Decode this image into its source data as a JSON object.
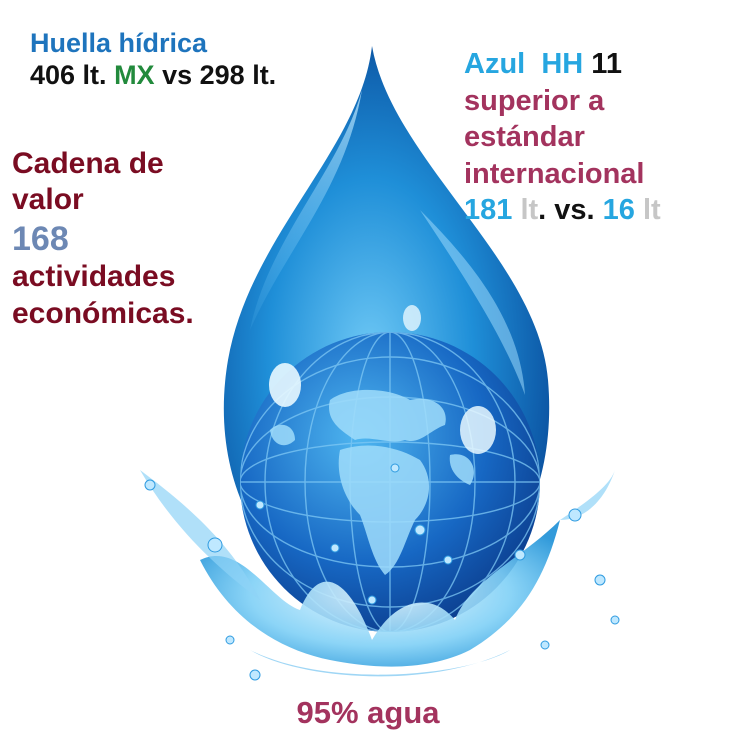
{
  "top_left": {
    "title": "Huella hídrica",
    "value_1": "406 lt.",
    "country": "MX",
    "vs": "vs",
    "value_2": "298 lt."
  },
  "top_right": {
    "azul": "Azul",
    "hh": "HH",
    "number": "11",
    "line_2": "superior a",
    "line_3": "estándar",
    "line_4": "internacional",
    "num_1": "181",
    "unit_1": "lt",
    "vs": ". vs.",
    "num_2": "16",
    "unit_2": "lt"
  },
  "mid_left": {
    "line_1": "Cadena de",
    "line_2": "valor",
    "number": "168",
    "line_3": "actividades",
    "line_4": "económicas."
  },
  "bottom": {
    "label": "95% agua"
  },
  "colors": {
    "blue": "#1e74bd",
    "dark_red": "#7a0c22",
    "magenta": "#a3335e",
    "green": "#228a3c",
    "cyan": "#26a6e0",
    "grey_blue": "#6d88b4",
    "light_grey": "#c6c6c6",
    "black": "#111111"
  }
}
